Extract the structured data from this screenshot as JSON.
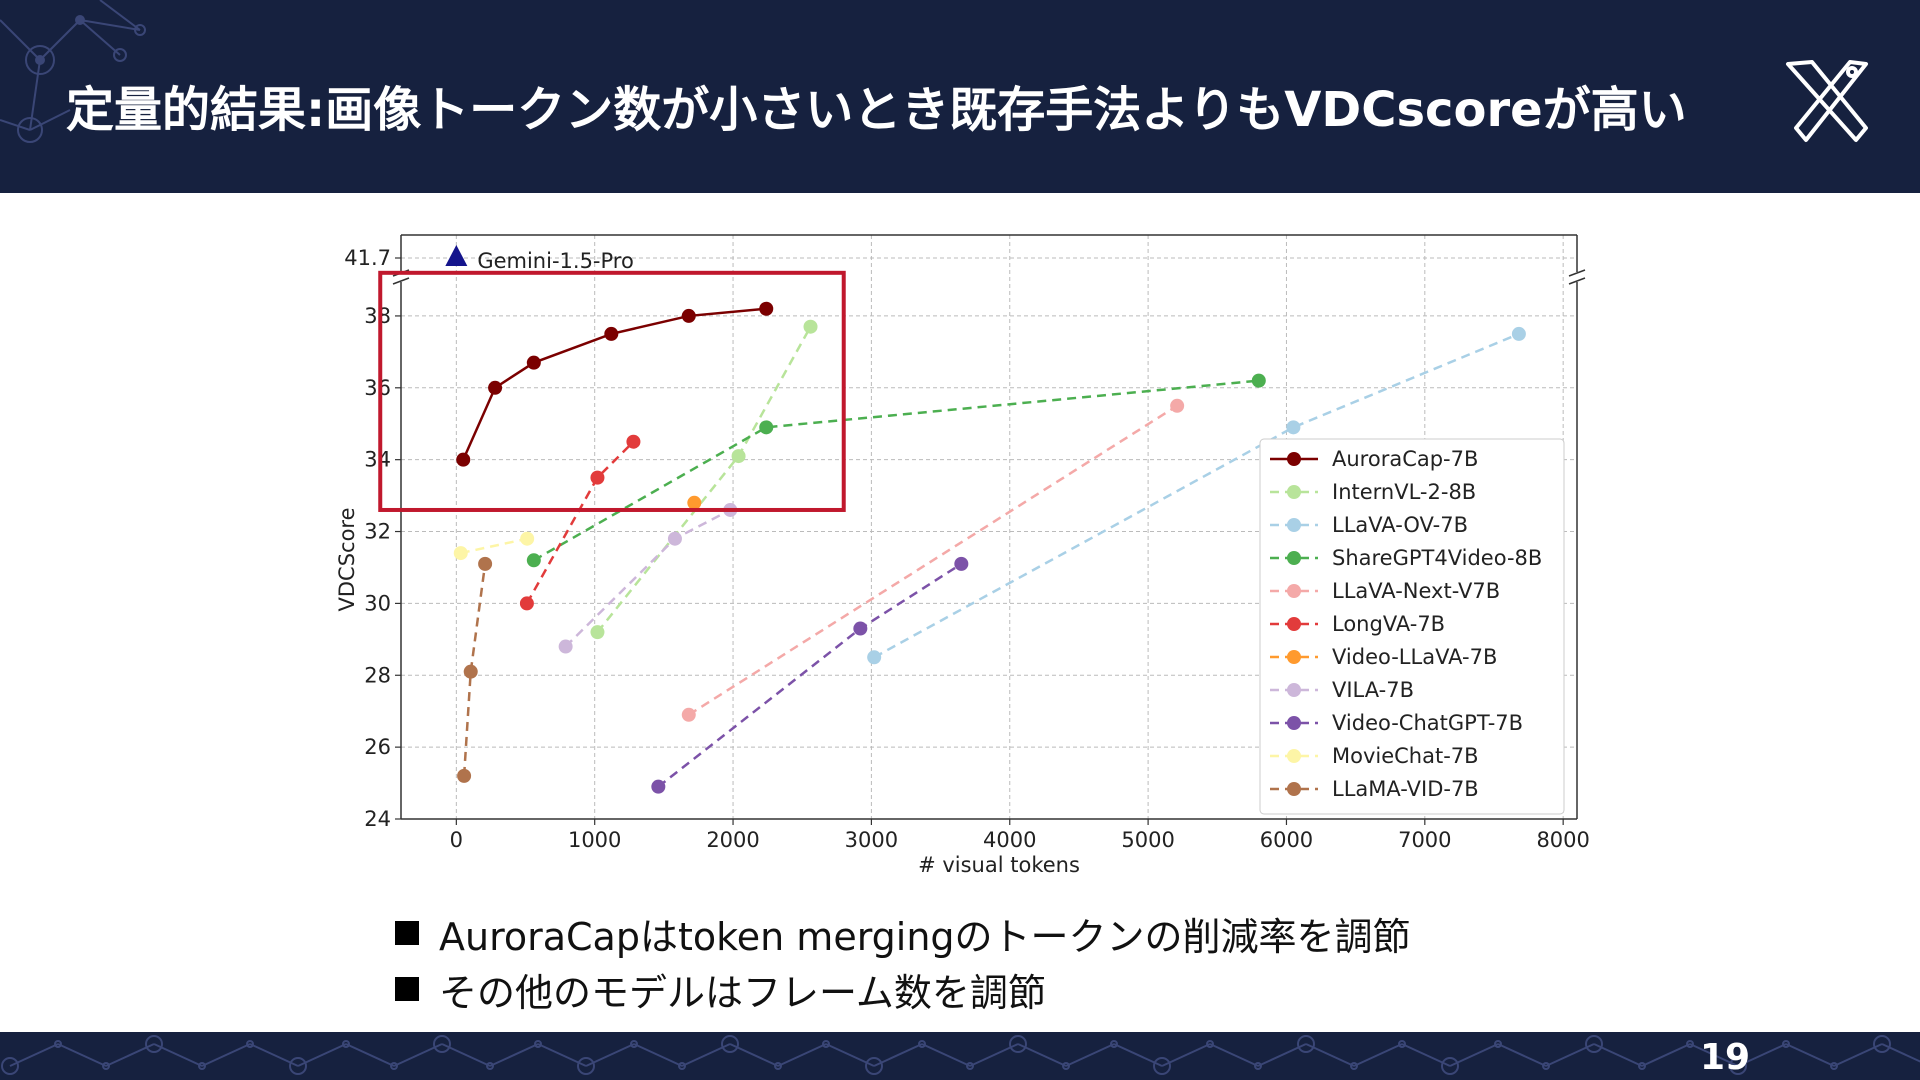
{
  "slide": {
    "title": "定量的結果:画像トークン数が小さいとき既存手法よりもVDCscoreが高い",
    "page_number": "19",
    "bullets": [
      "AuroraCapはtoken mergingのトークンの削減率を調節",
      "その他のモデルはフレーム数を調節"
    ],
    "logo_icon": "crossed-tools-icon"
  },
  "chart_data": {
    "type": "line",
    "title": "",
    "xlabel": "# visual tokens",
    "ylabel": "VDCScore",
    "xlim": [
      -400,
      8100
    ],
    "ylim": [
      24,
      39
    ],
    "broken_axis_top_value": 41.7,
    "x_ticks": [
      0,
      1000,
      2000,
      3000,
      4000,
      5000,
      6000,
      7000,
      8000
    ],
    "y_ticks": [
      24,
      26,
      28,
      30,
      32,
      34,
      36,
      38
    ],
    "y_top_tick_label": "41.7",
    "grid": true,
    "legend_position": "center-right",
    "annotation": {
      "label": "Gemini-1.5-Pro",
      "x": 0,
      "y": 41.7,
      "marker": "triangle",
      "color": "#14148c"
    },
    "highlight_box": {
      "x_range": [
        -550,
        2800
      ],
      "y_range": [
        32.6,
        39.2
      ],
      "color": "#c0182d"
    },
    "series": [
      {
        "name": "AuroraCap-7B",
        "color": "#7b0000",
        "style": "solid",
        "x": [
          50,
          280,
          560,
          1120,
          1680,
          2240
        ],
        "y": [
          34.0,
          36.0,
          36.7,
          37.5,
          38.0,
          38.2
        ]
      },
      {
        "name": "InternVL-2-8B",
        "color": "#b8e49a",
        "style": "dashed",
        "x": [
          1020,
          2040,
          2560
        ],
        "y": [
          29.2,
          34.1,
          37.7
        ]
      },
      {
        "name": "LLaVA-OV-7B",
        "color": "#a9d0e6",
        "style": "dashed",
        "x": [
          3020,
          6050,
          7680
        ],
        "y": [
          28.5,
          34.9,
          37.5
        ]
      },
      {
        "name": "ShareGPT4Video-8B",
        "color": "#4caf50",
        "style": "dashed",
        "x": [
          560,
          2240,
          5800
        ],
        "y": [
          31.2,
          34.9,
          36.2
        ]
      },
      {
        "name": "LLaVA-Next-V7B",
        "color": "#f4a9a8",
        "style": "dashed",
        "x": [
          1680,
          5210
        ],
        "y": [
          26.9,
          35.5
        ]
      },
      {
        "name": "LongVA-7B",
        "color": "#e23b3b",
        "style": "dashed",
        "x": [
          510,
          1020,
          1280
        ],
        "y": [
          30.0,
          33.5,
          34.5
        ]
      },
      {
        "name": "Video-LLaVA-7B",
        "color": "#ff9a2e",
        "style": "dashed",
        "x": [
          1720
        ],
        "y": [
          32.8
        ]
      },
      {
        "name": "VILA-7B",
        "color": "#cdb7da",
        "style": "dashed",
        "x": [
          790,
          1580,
          1980
        ],
        "y": [
          28.8,
          31.8,
          32.6
        ]
      },
      {
        "name": "Video-ChatGPT-7B",
        "color": "#7c52a8",
        "style": "dashed",
        "x": [
          1460,
          2920,
          3650
        ],
        "y": [
          24.9,
          29.3,
          31.1
        ]
      },
      {
        "name": "MovieChat-7B",
        "color": "#fdf5a6",
        "style": "dashed",
        "x": [
          32,
          512
        ],
        "y": [
          31.4,
          31.8
        ]
      },
      {
        "name": "LLaMA-VID-7B",
        "color": "#b0734c",
        "style": "dashed",
        "x": [
          56,
          104,
          208
        ],
        "y": [
          25.2,
          28.1,
          31.1
        ]
      }
    ]
  }
}
